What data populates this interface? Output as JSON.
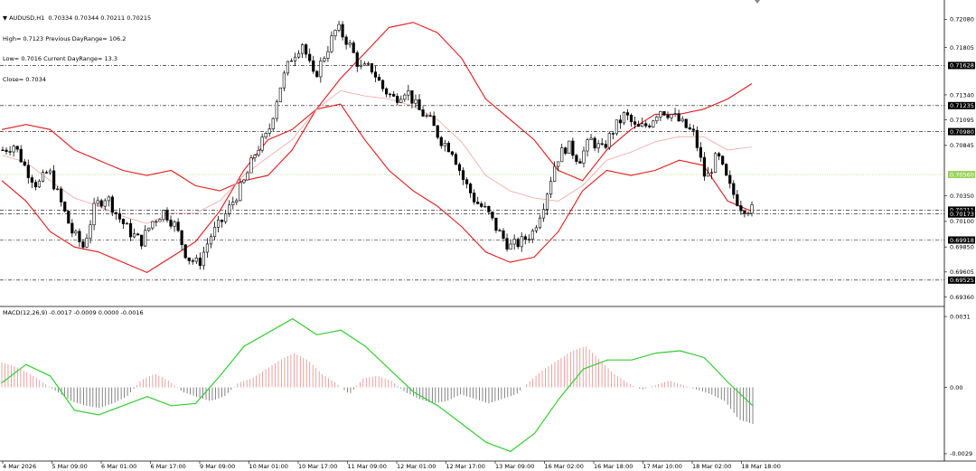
{
  "header": {
    "menu_arrow": "▼",
    "symbol_line": "AUDUSD,H1  0.70334 0.70344 0.70211 0.70215",
    "high_line": "High= 0.7123 Previous DayRange= 106.2",
    "low_line": "Low= 0.7016 Current DayRange= 13.3",
    "close_line": "Close= 0.7034"
  },
  "macd_title": "MACD(12,26,9) -0.0017 -0.0009 0.0000 -0.0016",
  "colors": {
    "bull": "#ffffff",
    "bear": "#000000",
    "band": "#e31a1c",
    "middle": "#f4a3a3",
    "level": "#000000",
    "current": "#9bd35a",
    "macd_pos": "#e98a8a",
    "macd_neg": "#666666",
    "signal": "#33cc33"
  },
  "chart_data": [
    {
      "type": "candlestick",
      "symbol": "AUDUSD",
      "timeframe": "H1",
      "ylim": [
        0.6932,
        0.7219
      ],
      "y_ticks": [
        0.7208,
        0.71805,
        0.7134,
        0.71095,
        0.70845,
        0.7035,
        0.701,
        0.6985,
        0.69605,
        0.6936
      ],
      "levels": [
        {
          "value": 0.71628,
          "label": "0.71628"
        },
        {
          "value": 0.71235,
          "label": "0.71235"
        },
        {
          "value": 0.7098,
          "label": "0.70980"
        },
        {
          "value": 0.7056,
          "label": "0.70560",
          "current": true
        },
        {
          "value": 0.70211,
          "label": "0.70211"
        },
        {
          "value": 0.70173,
          "label": "0.70173"
        },
        {
          "value": 0.69918,
          "label": "0.69918"
        },
        {
          "value": 0.69525,
          "label": "0.69525"
        }
      ],
      "x_labels": [
        "4 Mar 2026",
        "5 Mar 09:00",
        "6 Mar 01:00",
        "6 Mar 17:00",
        "9 Mar 09:00",
        "10 Mar 01:00",
        "10 Mar 17:00",
        "11 Mar 09:00",
        "12 Mar 01:00",
        "12 Mar 17:00",
        "13 Mar 09:00",
        "16 Mar 02:00",
        "16 Mar 18:00",
        "17 Mar 10:00",
        "18 Mar 02:00",
        "18 Mar 18:00"
      ],
      "close_path": [
        0.708,
        0.7085,
        0.7062,
        0.7045,
        0.706,
        0.703,
        0.7,
        0.6985,
        0.7025,
        0.7035,
        0.7015,
        0.7,
        0.699,
        0.701,
        0.702,
        0.7005,
        0.6975,
        0.6968,
        0.6995,
        0.701,
        0.703,
        0.705,
        0.708,
        0.7095,
        0.714,
        0.717,
        0.7185,
        0.715,
        0.7175,
        0.72,
        0.7185,
        0.716,
        0.716,
        0.714,
        0.713,
        0.714,
        0.712,
        0.711,
        0.709,
        0.708,
        0.705,
        0.703,
        0.702,
        0.7,
        0.6985,
        0.699,
        0.7,
        0.703,
        0.707,
        0.7085,
        0.707,
        0.709,
        0.708,
        0.71,
        0.7115,
        0.71,
        0.7105,
        0.712,
        0.7115,
        0.7105,
        0.7095,
        0.705,
        0.7075,
        0.7045,
        0.7025,
        0.70215
      ],
      "upper_band": [
        0.71,
        0.7105,
        0.71,
        0.708,
        0.707,
        0.706,
        0.7055,
        0.706,
        0.7045,
        0.704,
        0.705,
        0.7055,
        0.708,
        0.712,
        0.715,
        0.7175,
        0.72,
        0.7205,
        0.7195,
        0.717,
        0.713,
        0.711,
        0.709,
        0.706,
        0.705,
        0.708,
        0.71,
        0.7115,
        0.7115,
        0.712,
        0.713,
        0.7145
      ],
      "lower_band": [
        0.705,
        0.703,
        0.7,
        0.6985,
        0.698,
        0.697,
        0.696,
        0.6975,
        0.699,
        0.702,
        0.706,
        0.709,
        0.71,
        0.712,
        0.7125,
        0.709,
        0.706,
        0.704,
        0.7025,
        0.7005,
        0.698,
        0.697,
        0.6975,
        0.7,
        0.704,
        0.706,
        0.7055,
        0.706,
        0.707,
        0.7065,
        0.703,
        0.702
      ],
      "middle_band": [
        0.7075,
        0.7068,
        0.705,
        0.7033,
        0.7025,
        0.7015,
        0.7008,
        0.7018,
        0.7018,
        0.703,
        0.7055,
        0.7073,
        0.709,
        0.712,
        0.7138,
        0.7133,
        0.713,
        0.7123,
        0.711,
        0.7088,
        0.7055,
        0.704,
        0.7033,
        0.703,
        0.7045,
        0.707,
        0.7078,
        0.7088,
        0.7093,
        0.7093,
        0.708,
        0.7083
      ]
    },
    {
      "type": "macd",
      "params": "12,26,9",
      "ylim": [
        -0.0031,
        0.0033
      ],
      "y_ticks": [
        {
          "value": 0.0031,
          "label": "0.0031"
        },
        {
          "value": 0.0,
          "label": "0.00"
        },
        {
          "value": -0.0029,
          "label": "-0.0029"
        }
      ],
      "histogram": [
        0.0011,
        0.0009,
        0.0006,
        0.0002,
        -0.0002,
        -0.0006,
        -0.0008,
        -0.0009,
        -0.0007,
        -0.0004,
        0.0003,
        0.0006,
        0.0003,
        -0.0002,
        -0.0004,
        -0.0006,
        -0.0004,
        0.0002,
        0.0004,
        0.0008,
        0.0012,
        0.0015,
        0.0012,
        0.0006,
        0.0002,
        -0.0003,
        0.0004,
        0.0005,
        0.0003,
        -0.0002,
        -0.0005,
        -0.0007,
        -0.0006,
        -0.0003,
        -0.0005,
        -0.0007,
        -0.0005,
        -0.0003,
        0.0003,
        0.0008,
        0.0012,
        0.0016,
        0.0018,
        0.0012,
        0.0006,
        0.0002,
        -0.0001,
        0.0001,
        0.0003,
        0.0001,
        -0.0001,
        -0.0003,
        -0.0006,
        -0.0014,
        -0.0016
      ],
      "signal": [
        0.0002,
        0.001,
        0.0005,
        -0.001,
        -0.0012,
        -0.0008,
        -0.0004,
        -0.0008,
        -0.0007,
        0.0005,
        0.0018,
        0.0024,
        0.003,
        0.0023,
        0.0025,
        0.0018,
        0.0008,
        -0.0002,
        -0.0008,
        -0.0016,
        -0.0024,
        -0.0028,
        -0.002,
        -0.0005,
        0.0008,
        0.0012,
        0.0012,
        0.0015,
        0.0016,
        0.0013,
        0.0002,
        -0.0008
      ]
    }
  ]
}
